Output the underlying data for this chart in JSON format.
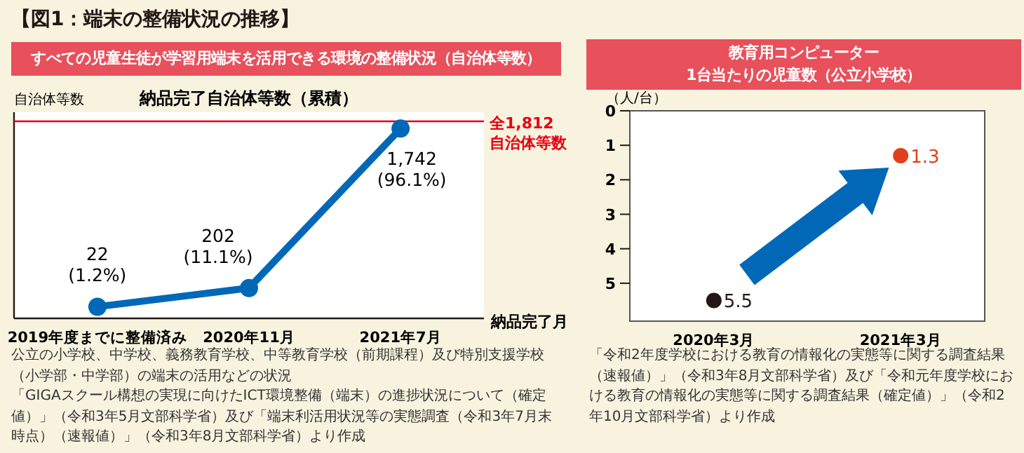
{
  "chart_data": [
    {
      "type": "line",
      "title": "すべての児童生徒が学習用端末を活用できる環境の整備状況（自治体等数）",
      "subtitle": "納品完了自治体等数（累積）",
      "ylabel": "自治体等数",
      "xlabel": "納品完了月",
      "annotations": [
        "【図1：端末の整備状況の推移】",
        "公立の小学校、中学校、義務教育学校、中等教育学校（前期課程）及び特別支援学校（小学部・中学部）の端末の活用などの状況",
        "「GIGAスクール構想の実現に向けたICT環境整備（端末）の進捗状況について（確定値）」（令和3年5月文部科学省）及び「端末利活用状況等の実態調査（令和3年7月末時点）（速報値）」（令和3年8月文部科学省）より作成"
      ],
      "categories": [
        "2019年度までに整備済み",
        "2020年11月",
        "2021年7月"
      ],
      "series": [
        {
          "color": "#0068b7",
          "values": [
            22,
            202,
            1742
          ],
          "value_labels": [
            "22\n(1.2%)",
            "202\n(11.1%)",
            "1,742\n(96.1%)"
          ]
        }
      ],
      "ylim": [
        -90,
        1900
      ],
      "tick_labels": "x",
      "marker": "circle",
      "line_style": "solid",
      "grid": false,
      "ref_lines": [
        {
          "axis": "y",
          "value": 1812,
          "label": "全1,812\n自治体等数",
          "color": "#e60012"
        }
      ]
    },
    {
      "type": "scatter",
      "title": "教育用コンピューター\n1台当たりの児童数（公立小学校）",
      "ylabel": "（人/台）",
      "annotations": [
        "「令和2年度学校における教育の情報化の実態等に関する調査結果（速報値）」（令和3年8月文部科学省）及び「令和元年度学校における教育の情報化の実態等に関する調査結果（確定値）」（令和2年10月文部科学省）より作成"
      ],
      "categories": [
        "2020年3月",
        "2021年3月"
      ],
      "values": [
        5.5,
        1.3
      ],
      "colors": [
        "#231815",
        "#e0401c"
      ],
      "data_labels": true,
      "ylim": [
        6.1,
        0
      ],
      "yticks": [
        0,
        1,
        2,
        3,
        4,
        5
      ],
      "marker": "circle",
      "grid": false
    }
  ]
}
